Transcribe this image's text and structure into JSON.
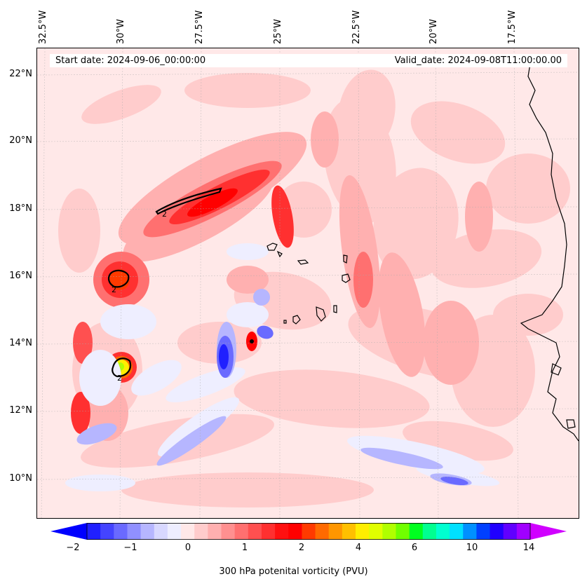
{
  "header": {
    "start_date": "Start date: 2024-09-06_00:00:00",
    "valid_date": "Valid_date: 2024-09-08T11:00:00.00"
  },
  "map": {
    "longitude_labels": [
      "32.5°W",
      "30°W",
      "27.5°W",
      "25°W",
      "22.5°W",
      "20°W",
      "17.5°W"
    ],
    "latitude_labels": [
      "22°N",
      "20°N",
      "18°N",
      "16°N",
      "14°N",
      "12°N",
      "10°N"
    ],
    "contour_label": "2",
    "contour_labels": [
      "2",
      "2",
      "2"
    ],
    "background_color": "#ffe8e8",
    "coastline_color": "#000000"
  },
  "colorbar": {
    "label": "300 hPa potenital vorticity (PVU)",
    "tick_labels": [
      "−2",
      "−1",
      "0",
      "1",
      "2",
      "4",
      "6",
      "10",
      "14"
    ],
    "colors": [
      "#0000ff",
      "#2020ff",
      "#4444ff",
      "#6a6aff",
      "#9090ff",
      "#b6b6ff",
      "#d8d8ff",
      "#eeeeff",
      "#ffe8e8",
      "#ffcccc",
      "#ffb0b0",
      "#ff9090",
      "#ff7070",
      "#ff5050",
      "#ff3030",
      "#ff1010",
      "#ff0000",
      "#ff3a00",
      "#ff6a00",
      "#ff9600",
      "#ffc000",
      "#ffee00",
      "#e0ff00",
      "#b0ff00",
      "#70ff00",
      "#00ff20",
      "#00ff90",
      "#00ffd0",
      "#00e0ff",
      "#0090ff",
      "#0040ff",
      "#2000ff",
      "#6000ff",
      "#a000ff",
      "#d000ff"
    ],
    "under_color": "#0000ff",
    "over_color": "#d000ff"
  }
}
